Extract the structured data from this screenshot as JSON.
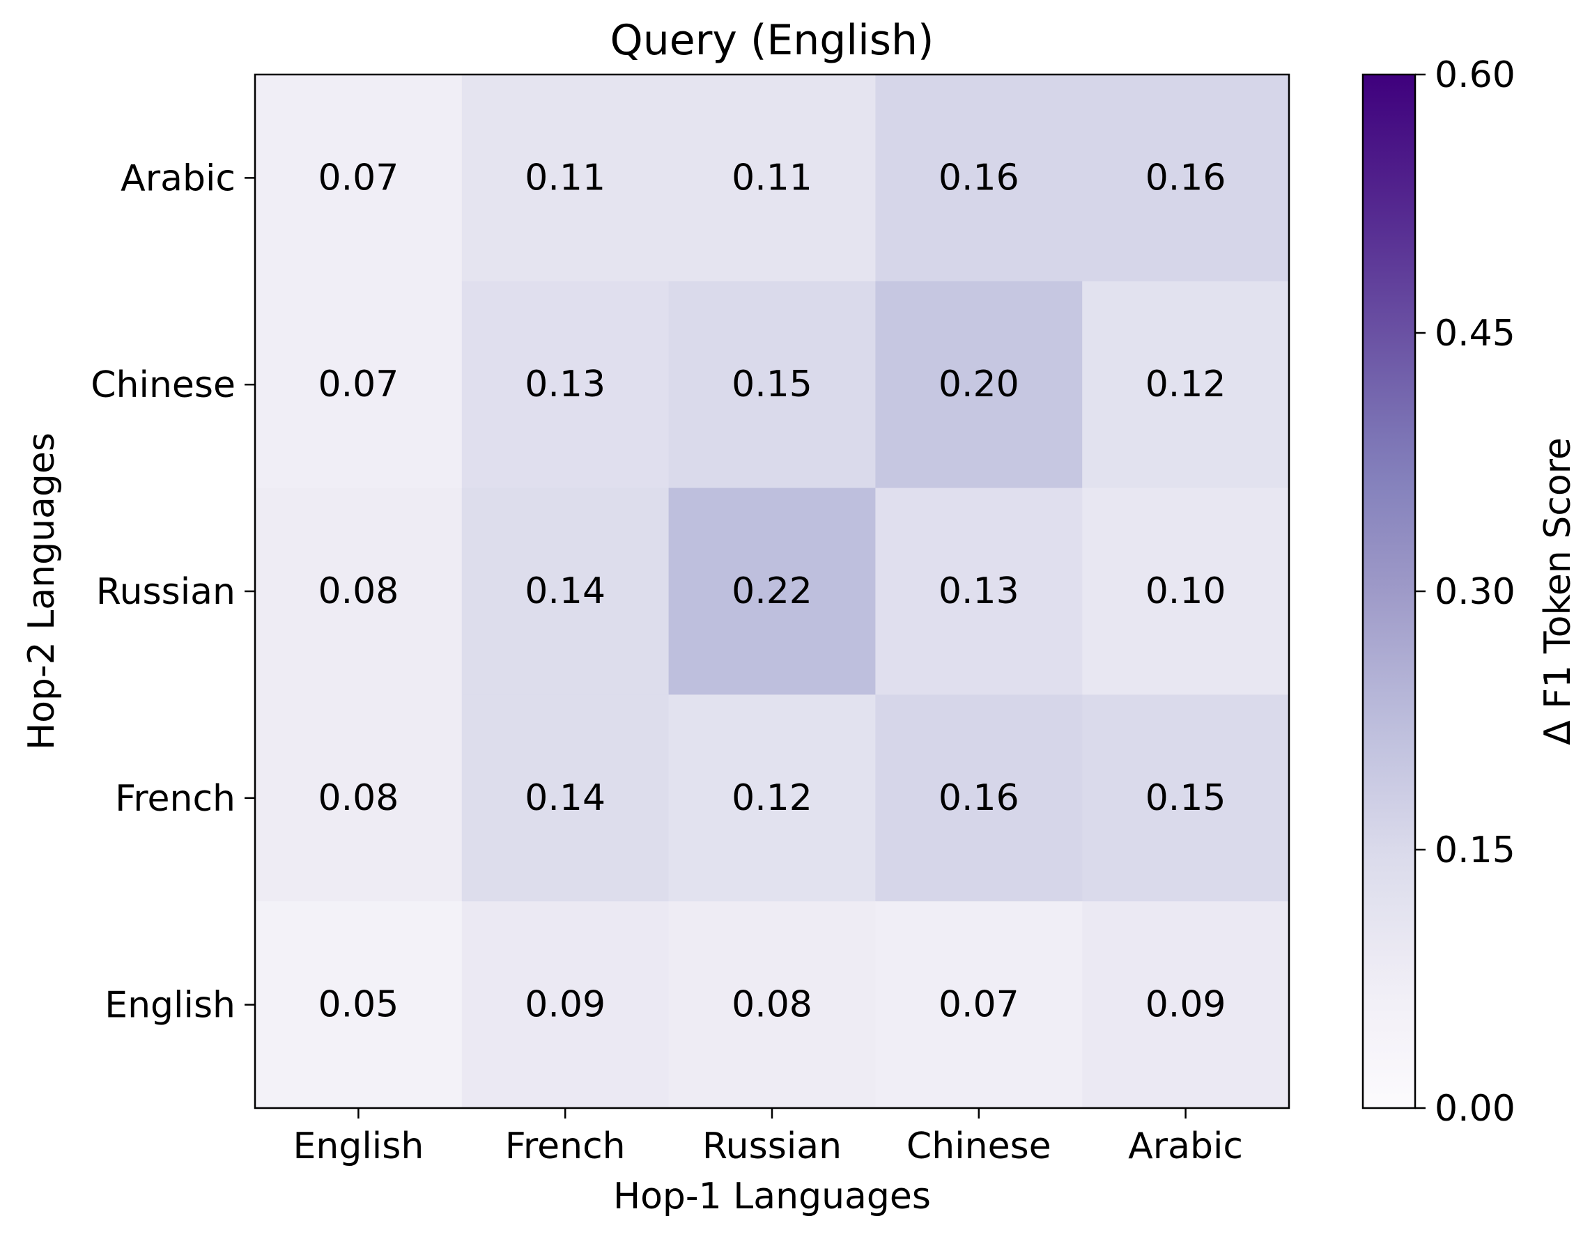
{
  "chart_data": {
    "type": "heatmap",
    "title": "Query (English)",
    "xlabel": "Hop-1 Languages",
    "ylabel": "Hop-2 Languages",
    "x_categories": [
      "English",
      "French",
      "Russian",
      "Chinese",
      "Arabic"
    ],
    "y_categories_top_to_bottom": [
      "Arabic",
      "Chinese",
      "Russian",
      "French",
      "English"
    ],
    "values": [
      [
        "0.07",
        "0.11",
        "0.11",
        "0.16",
        "0.16"
      ],
      [
        "0.07",
        "0.13",
        "0.15",
        "0.20",
        "0.12"
      ],
      [
        "0.08",
        "0.14",
        "0.22",
        "0.13",
        "0.10"
      ],
      [
        "0.08",
        "0.14",
        "0.12",
        "0.16",
        "0.15"
      ],
      [
        "0.05",
        "0.09",
        "0.08",
        "0.07",
        "0.09"
      ]
    ],
    "colorbar": {
      "label": "Δ F1 Token Score",
      "range": [
        0,
        0.6
      ],
      "ticks": [
        "0.00",
        "0.15",
        "0.30",
        "0.45",
        "0.60"
      ],
      "colormap": "Purples",
      "color_low": "#fcfbfd",
      "color_high": "#3f007d"
    },
    "grid": false
  }
}
